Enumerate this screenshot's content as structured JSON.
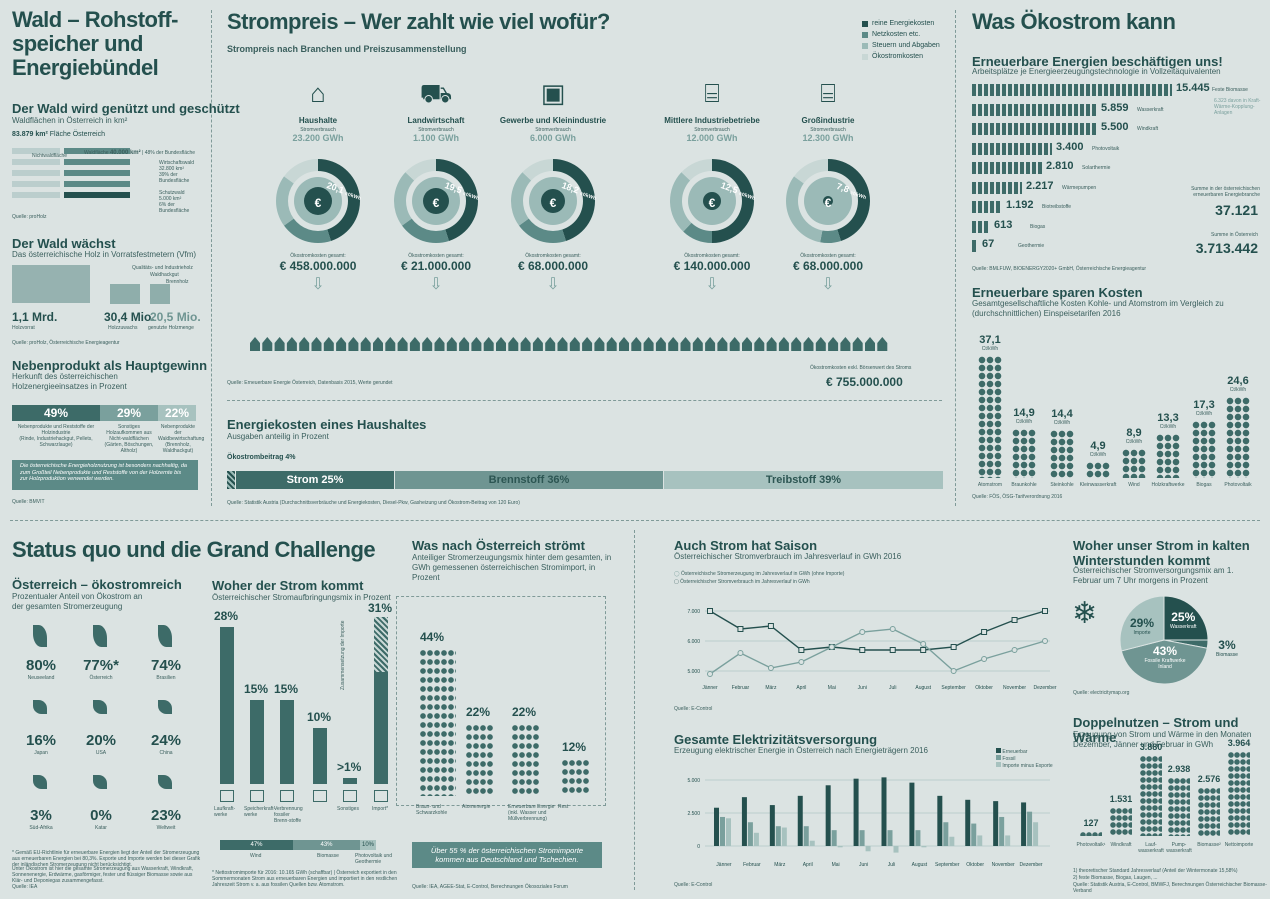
{
  "colors": {
    "dark": "#24504e",
    "mid": "#5c8a87",
    "light": "#9bbab7",
    "pale": "#c8d7d5",
    "bg": "#dbe3e2"
  },
  "wald": {
    "title": "Wald – Rohstoff-speicher und Energiebündel",
    "title_l1": "Wald – Rohstoff-",
    "title_l2": "speicher und",
    "title_l3": "Energiebündel",
    "s1_title": "Der Wald wird genützt und geschützt",
    "s1_sub": "Waldflächen in Österreich in km²",
    "area": "83.879 km²",
    "area_label": "Fläche Österreich",
    "nicht": "Nichtwaldfläche",
    "wf": "Waldfläche",
    "wf_val": "40.000 km²",
    "wf_pct": "48% der Bundesfläche",
    "wirt": "Wirtschaftswald",
    "wirt_val": "32.800 km²",
    "wirt_pct": "39% der Bundesfläche",
    "schutz": "Schutzwald",
    "schutz_val": "5.000 km²",
    "schutz_pct": "6% der Bundesfläche",
    "src1": "Quelle: proHolz",
    "s2_title": "Der Wald wächst",
    "s2_sub": "Das österreichische Holz in Vorratsfestmetern (Vfm)",
    "leg1": "Qualitäts- und Industrieholz",
    "leg2": "Waldhackgut",
    "leg3": "Brennholz",
    "v1": "1,1 Mrd.",
    "v1l": "Holzvorrat",
    "v2": "30,4 Mio.",
    "v2l": "Holzzuwachs",
    "v3": "20,5 Mio.",
    "v3l": "genutzte Holzmenge",
    "src2": "Quelle: proHolz, Österreichische Energieagentur",
    "s3_title": "Nebenprodukt als Hauptgewinn",
    "s3_sub": "Herkunft des österreichischen Holzenergieeinsatzes in Prozent",
    "p1": "49%",
    "p1l": "Nebenprodukte und Reststoffe der Holzindustrie",
    "p1s": "(Rinde, Industriehackgut, Pellets, Schwarzlauge)",
    "p2": "29%",
    "p2l": "Sonstiges Holzaufkommen aus Nicht-waldflächen",
    "p2s": "(Gärten, Böschungen, Altholz)",
    "p3": "22%",
    "p3l": "Nebenprodukte der Waldbewirtschaftung",
    "p3s": "(Brennholz, Waldhackgut)",
    "note": "Die österreichische Energieholznutzung ist besonders nachhaltig, da zum Großteil Nebenprodukte und Reststoffe von der Holzernte bis zur Holzproduktion verwendet werden.",
    "src3": "Quelle: BMVIT"
  },
  "strom": {
    "title": "Strompreis – Wer zahlt wie viel wofür?",
    "sub": "Strompreis nach Branchen und Preiszusammenstellung",
    "legend": [
      "reine Energiekosten",
      "Netzkosten etc.",
      "Steuern und Abgaben",
      "Ökostromkosten"
    ],
    "verbrauch": "Stromverbrauch",
    "sectors": [
      {
        "name": "Haushalte",
        "gwh": "23.200 GWh",
        "ct": "20,1",
        "kosten": "€ 458.000.000"
      },
      {
        "name": "Landwirtschaft",
        "gwh": "1.100 GWh",
        "ct": "19,5",
        "kosten": "€ 21.000.000"
      },
      {
        "name": "Gewerbe und Kleinindustrie",
        "gwh": "6.000 GWh",
        "ct": "18,2",
        "kosten": "€ 68.000.000"
      },
      {
        "name": "Mittlere Industriebetriebe",
        "gwh": "12.000 GWh",
        "ct": "12,5",
        "kosten": "€ 140.000.000"
      },
      {
        "name": "Großindustrie",
        "gwh": "12.300 GWh",
        "ct": "7,8",
        "kosten": "€ 68.000.000"
      }
    ],
    "ctunit": "ct/kWh",
    "oko_label": "Ökostromkosten gesamt:",
    "total_label": "Ökostromkosten exkl. Börsenwert des Stroms",
    "total": "€ 755.000.000",
    "src": "Quelle: Erneuerbare Energie Österreich, Datenbasis 2015, Werte gerundet"
  },
  "haushalt": {
    "title": "Energiekosten eines Haushaltes",
    "sub": "Ausgaben anteilig in Prozent",
    "oko": "Ökostrombeitrag 4%",
    "strom": "Strom 25%",
    "brenn": "Brennstoff 36%",
    "treib": "Treibstoff 39%",
    "src": "Quelle: Statistik Austria (Durchschnittsverbräuche und Energiekosten, Diesel-Pkw, Gasheizung und Ökostrom-Beitrag von 120 Euro)"
  },
  "oko": {
    "title": "Was Ökostrom kann",
    "s1_title": "Erneuerbare Energien beschäftigen uns!",
    "s1_sub": "Arbeitsplätze je Energieerzeugungstechnologie in Vollzeitäquivalenten",
    "jobs": [
      {
        "v": "15.445",
        "l": "Feste Biomasse"
      },
      {
        "v": "5.859",
        "l": "Wasserkraft"
      },
      {
        "v": "5.500",
        "l": "Windkraft"
      },
      {
        "v": "3.400",
        "l": "Photovoltaik"
      },
      {
        "v": "2.810",
        "l": "Solarthermie"
      },
      {
        "v": "2.217",
        "l": "Wärmepumpen"
      },
      {
        "v": "1.192",
        "l": "Biotreibstoffe"
      },
      {
        "v": "613",
        "l": "Biogas"
      },
      {
        "v": "67",
        "l": "Geothermie"
      }
    ],
    "kwk": "6.323 davon in Kraft-Wärme-Kopplung-Anlagen",
    "sum1_l": "Summe in der österreichischen erneuerbaren Energiebranche",
    "sum1": "37.121",
    "sum2_l": "Summe in Österreich",
    "sum2": "3.713.442",
    "src1": "Quelle: BMLFUW, BIOENERGY2020+ GmbH, Österreichische Energieagentur",
    "s2_title": "Erneuerbare sparen Kosten",
    "s2_sub": "Gesamtgesellschaftliche Kosten Kohle- und Atomstrom im Vergleich zu (durchschnittlichen) Einspeisetarifen 2016",
    "costs": [
      {
        "v": "37,1",
        "l": "Atomstrom"
      },
      {
        "v": "14,9",
        "l": "Braunkohle"
      },
      {
        "v": "14,4",
        "l": "Steinkohle"
      },
      {
        "v": "4,9",
        "l": "Kleinwasserkraft"
      },
      {
        "v": "8,9",
        "l": "Wind"
      },
      {
        "v": "13,3",
        "l": "Holzkraftwerke"
      },
      {
        "v": "17,3",
        "l": "Biogas"
      },
      {
        "v": "24,6",
        "l": "Photovoltaik"
      }
    ],
    "unit": "Ct/kWh",
    "src2": "Quelle: FÖS, ÖSG-Tarifverordnung 2016"
  },
  "status": {
    "title": "Status quo und die Grand Challenge",
    "s1_title": "Österreich – ökostromreich",
    "s1_sub": "Prozentualer Anteil von Ökostrom an der gesamten Stromerzeugung",
    "countries": [
      {
        "v": "80%",
        "l": "Neuseeland"
      },
      {
        "v": "77%*",
        "l": "Österreich"
      },
      {
        "v": "74%",
        "l": "Brasilien"
      },
      {
        "v": "16%",
        "l": "Japan"
      },
      {
        "v": "20%",
        "l": "USA"
      },
      {
        "v": "24%",
        "l": "China"
      },
      {
        "v": "3%",
        "l": "Süd-Afrika"
      },
      {
        "v": "0%",
        "l": "Katar"
      },
      {
        "v": "23%",
        "l": "Weltweit"
      }
    ],
    "foot": "* Gemäß EU-Richtlinie für erneuerbare Energien liegt der Anteil der Stromerzeugung aus erneuerbaren Energien bei 80,3%. Exporte und Importe werden bei dieser Grafik der inländischen Stromerzeugung nicht berücksichtigt.",
    "foot2": "Unter Ökostrom ist hier die gesamte Stromerzeugung aus Wasserkraft, Windkraft, Sonnenenergie, Erdwärme, gasförmiger, fester und flüssiger Biomasse sowie aus Klär- und Deponiegas zusammengefasst.",
    "src": "Quelle: IEA"
  },
  "woher": {
    "title": "Woher der Strom kommt",
    "sub": "Österreichischer Stromaufbringungsmix in Prozent",
    "bars": [
      {
        "v": "28%",
        "l": "Laufkraft-werke",
        "h": 28
      },
      {
        "v": "15%",
        "l": "Speicherkraft-werke",
        "h": 15
      },
      {
        "v": "15%",
        "l": "Verbrennung fossiler Brenn-stoffe",
        "h": 15
      },
      {
        "v": "10%",
        "l": "",
        "h": 10
      },
      {
        "v": ">1%",
        "l": "Sonstiges",
        "h": 1
      },
      {
        "v": "31%",
        "l": "Import*",
        "h": 31
      }
    ],
    "import_vert": "Zusammensetzung der Importe",
    "mix": [
      {
        "v": "47%",
        "l": "Wind"
      },
      {
        "v": "43%",
        "l": "Biomasse"
      },
      {
        "v": "10%",
        "l": "Photovoltaik und Geothermie"
      }
    ],
    "foot": "* Nettostromimporte für 2016: 10.165 GWh (schaffbar) | Österreich exportiert in den Sommermonaten Strom aus erneuerbaren Energien und importiert in den restlichen Jahreszeit Strom v. a. aus fossilen Quellen bzw. Atomstrom."
  },
  "flow": {
    "title": "Was nach Österreich strömt",
    "sub": "Anteiliger Stromerzeugungsmix hinter dem gesamten, in GWh gemessenen österreichischen Stromimport, in Prozent",
    "items": [
      {
        "v": "44%",
        "l": "Braun- und Schwarzkohle"
      },
      {
        "v": "22%",
        "l": "Atomenergie"
      },
      {
        "v": "22%",
        "l": "Erneuerbare Energie (inkl. Wasser und Müllverbrennung)"
      },
      {
        "v": "12%",
        "l": "Rest"
      }
    ],
    "box": "Über 55 % der österreichischen Stromimporte kommen aus Deutschland und Tschechien.",
    "src": "Quelle: IEA, AGEE-Stat, E-Control, Berechnungen Ökosoziales Forum"
  },
  "saison": {
    "title": "Auch Strom hat Saison",
    "sub": "Österreichischer Stromverbrauch im Jahresverlauf in GWh 2016",
    "leg1": "Österreichische Stromerzeugung im Jahresverlauf in GWh (ohne Importe)",
    "leg2": "Österreichischer Stromverbrauch im Jahresverlauf in GWh",
    "src": "Quelle: E-Control"
  },
  "chart_data": [
    {
      "type": "line",
      "title": "Auch Strom hat Saison",
      "categories": [
        "Jänner",
        "Februar",
        "März",
        "April",
        "Mai",
        "Juni",
        "Juli",
        "August",
        "September",
        "Oktober",
        "November",
        "Dezember"
      ],
      "yticks": [
        "7.000",
        "6.000",
        "5.000"
      ],
      "ylim": [
        4800,
        7200
      ],
      "series": [
        {
          "name": "Österreichischer Stromverbrauch im Jahresverlauf in GWh",
          "values": [
            7000,
            6400,
            6500,
            5700,
            5800,
            5700,
            5700,
            5700,
            5800,
            6300,
            6700,
            7000
          ]
        },
        {
          "name": "Österreichische Stromerzeugung im Jahresverlauf in GWh (ohne Importe)",
          "values": [
            4900,
            5600,
            5100,
            5300,
            5800,
            6300,
            6400,
            5900,
            5000,
            5400,
            5700,
            6000
          ]
        }
      ]
    },
    {
      "type": "bar",
      "title": "Gesamte Elektrizitätsversorgung",
      "categories": [
        "Jänner",
        "Februar",
        "März",
        "April",
        "Mai",
        "Juni",
        "Juli",
        "August",
        "September",
        "Oktober",
        "November",
        "Dezember"
      ],
      "yticks": [
        "5.000",
        "2.500",
        "0"
      ],
      "ylim": [
        -1000,
        5500
      ],
      "series": [
        {
          "name": "Erneuerbar",
          "values": [
            2900,
            3700,
            3100,
            3800,
            4600,
            5100,
            5200,
            4800,
            3800,
            3500,
            3400,
            3300
          ]
        },
        {
          "name": "Fossil",
          "values": [
            2200,
            1800,
            1500,
            1500,
            1200,
            1200,
            1200,
            1200,
            1800,
            1700,
            2200,
            2600
          ]
        },
        {
          "name": "Importe minus Exporte",
          "values": [
            2100,
            1000,
            1400,
            400,
            -100,
            -400,
            -500,
            -100,
            700,
            800,
            800,
            1800
          ]
        }
      ]
    },
    {
      "type": "pie",
      "title": "Woher unser Strom in kalten Winterstunden kommt",
      "series": [
        {
          "name": "Wasserkraft",
          "values": [
            25
          ]
        },
        {
          "name": "Fossile Kraftwerke Inland",
          "values": [
            43
          ]
        },
        {
          "name": "Importe",
          "values": [
            29
          ]
        },
        {
          "name": "Biomasse",
          "values": [
            3
          ]
        }
      ]
    }
  ],
  "elekt": {
    "title": "Gesamte Elektrizitätsversorgung",
    "sub": "Erzeugung elektrischer Energie in Österreich nach Energieträgern 2016",
    "leg": [
      "Erneuerbar",
      "Fossil",
      "Importe minus Exporte"
    ],
    "src": "Quelle: E-Control"
  },
  "winter": {
    "title": "Woher unser Strom in kalten Winterstunden kommt",
    "t1": "Woher unser Strom in kalten",
    "t2": "Winterstunden kommt",
    "sub": "Österreichischer Stromversorgungsmix am 1. Februar um 7 Uhr morgens in Prozent",
    "w": "25%",
    "wl": "Wasserkraft",
    "i": "29%",
    "il": "Importe",
    "f": "43%",
    "fl": "Fossile Kraftwerke Inland",
    "b": "3%",
    "bl": "Biomasse",
    "src": "Quelle: electricitymap.org"
  },
  "doppel": {
    "title": "Doppelnutzen – Strom und Wärme",
    "sub": "Erzeugung von Strom und Wärme in den Monaten Dezember, Jänner und Februar in GWh",
    "items": [
      {
        "v": "127",
        "l": "Photovoltaik¹"
      },
      {
        "v": "1.531",
        "l": "Windkraft"
      },
      {
        "v": "3.880",
        "l": "Lauf-wasserkraft"
      },
      {
        "v": "2.938",
        "l": "Pump-wasserkraft"
      },
      {
        "v": "2.576",
        "l": "Biomasse²"
      },
      {
        "v": "3.964",
        "l": "Nettoimporte"
      }
    ],
    "f1": "1) theoretischer Standard Jahresverlauf (Anteil der Wintermonate 15,58%)",
    "f2": "2) feste Biomasse, Biogas, Laugen, ...",
    "src": "Quelle: Statistik Austria, E-Control, BMWFJ, Berechnungen Österreichischer Biomasse-Verband"
  }
}
